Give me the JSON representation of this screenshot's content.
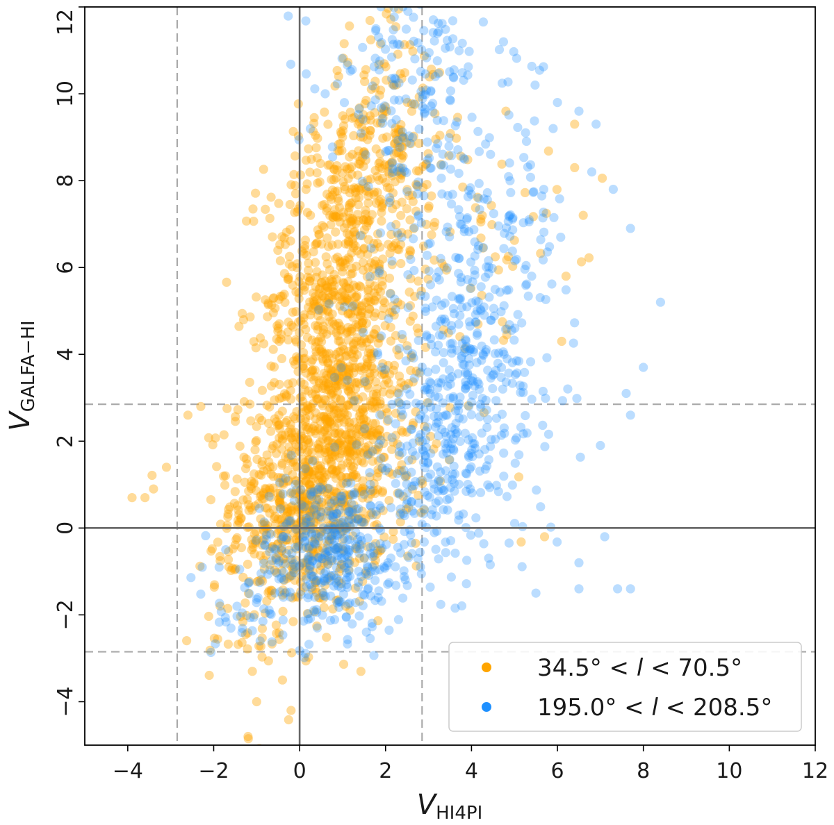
{
  "chart_data": {
    "type": "scatter",
    "title": "",
    "xlabel": "V",
    "xlabel_subscript": "HI4PI",
    "ylabel": "V",
    "ylabel_subscript": "GALFA−HI",
    "xlim": [
      -5,
      12
    ],
    "ylim": [
      -5,
      12
    ],
    "xticks": [
      -4,
      -2,
      0,
      2,
      4,
      6,
      8,
      10,
      12
    ],
    "yticks": [
      -4,
      -2,
      0,
      2,
      4,
      6,
      8,
      10,
      12
    ],
    "xtick_labels": [
      "−4",
      "−2",
      "0",
      "2",
      "4",
      "6",
      "8",
      "10",
      "12"
    ],
    "ytick_labels": [
      "−4",
      "−2",
      "0",
      "2",
      "4",
      "6",
      "8",
      "10",
      "12"
    ],
    "grid": false,
    "reference_lines": {
      "solid": {
        "x": 0,
        "y": 0,
        "color": "#666666"
      },
      "dashed": {
        "x": [
          -2.85,
          2.85
        ],
        "y": [
          -2.85,
          2.85
        ],
        "color": "#aaaaaa"
      }
    },
    "legend": {
      "position": "lower right",
      "entries": [
        {
          "label": "34.5° < l < 70.5°",
          "pre": "34.5° < ",
          "var": "l",
          "post": " < 70.5°",
          "color": "#ffa500"
        },
        {
          "label": "195.0° < l < 208.5°",
          "pre": "195.0° < ",
          "var": "l",
          "post": " < 208.5°",
          "color": "#1e90ff"
        }
      ]
    },
    "series": [
      {
        "name": "34.5° < l < 70.5°",
        "color": "#ffa500",
        "opacity": 0.4,
        "clusters": [
          {
            "cx": 0.2,
            "cy": 0.6,
            "sx": 0.9,
            "sy": 1.3,
            "n": 700
          },
          {
            "cx": 0.8,
            "cy": 5.2,
            "sx": 0.8,
            "sy": 1.9,
            "n": 600
          },
          {
            "cx": 1.9,
            "cy": 8.6,
            "sx": 0.7,
            "sy": 1.4,
            "n": 260
          },
          {
            "cx": 1.2,
            "cy": 2.8,
            "sx": 0.9,
            "sy": 1.4,
            "n": 300
          },
          {
            "cx": 3.6,
            "cy": 5.5,
            "sx": 1.2,
            "sy": 2.2,
            "n": 80
          },
          {
            "cx": -1.0,
            "cy": -1.6,
            "sx": 0.7,
            "sy": 1.2,
            "n": 60
          }
        ],
        "points": [
          [
            -3.9,
            0.7
          ],
          [
            -3.6,
            0.7
          ],
          [
            -3.4,
            0.9
          ],
          [
            -3.1,
            1.4
          ],
          [
            -2.6,
            2.6
          ],
          [
            -2.3,
            2.8
          ],
          [
            -1.2,
            -4.8
          ],
          [
            -1.0,
            -4.0
          ],
          [
            -0.2,
            -4.2
          ],
          [
            -0.4,
            -3.5
          ],
          [
            -1.1,
            -3.3
          ],
          [
            5.7,
            -0.2
          ],
          [
            6.4,
            9.3
          ],
          [
            6.6,
            7.2
          ],
          [
            6.4,
            8.3
          ],
          [
            6.2,
            5.8
          ],
          [
            6.1,
            4.3
          ],
          [
            4.8,
            9.6
          ]
        ]
      },
      {
        "name": "195.0° < l < 208.5°",
        "color": "#1e90ff",
        "opacity": 0.3,
        "clusters": [
          {
            "cx": 0.7,
            "cy": -0.6,
            "sx": 0.9,
            "sy": 0.9,
            "n": 360
          },
          {
            "cx": 3.2,
            "cy": 1.4,
            "sx": 1.1,
            "sy": 1.3,
            "n": 260
          },
          {
            "cx": 4.0,
            "cy": 4.0,
            "sx": 1.0,
            "sy": 1.4,
            "n": 220
          },
          {
            "cx": 3.7,
            "cy": 7.2,
            "sx": 1.3,
            "sy": 2.1,
            "n": 220
          },
          {
            "cx": 2.4,
            "cy": 10.3,
            "sx": 0.9,
            "sy": 1.2,
            "n": 120
          },
          {
            "cx": -1.6,
            "cy": -1.9,
            "sx": 0.5,
            "sy": 0.5,
            "n": 25
          }
        ],
        "points": [
          [
            8.4,
            5.2
          ],
          [
            7.7,
            6.9
          ],
          [
            8.0,
            3.7
          ],
          [
            7.6,
            3.1
          ],
          [
            7.7,
            2.6
          ],
          [
            7.0,
            1.9
          ],
          [
            7.1,
            -0.2
          ],
          [
            7.7,
            -1.4
          ],
          [
            7.4,
            -1.4
          ],
          [
            6.5,
            -0.8
          ],
          [
            6.5,
            -1.4
          ],
          [
            5.5,
            -1.5
          ],
          [
            7.3,
            7.8
          ],
          [
            6.8,
            8.2
          ],
          [
            6.9,
            9.3
          ],
          [
            6.0,
            9.8
          ],
          [
            6.5,
            9.6
          ],
          [
            5.9,
            9.2
          ]
        ]
      }
    ]
  }
}
